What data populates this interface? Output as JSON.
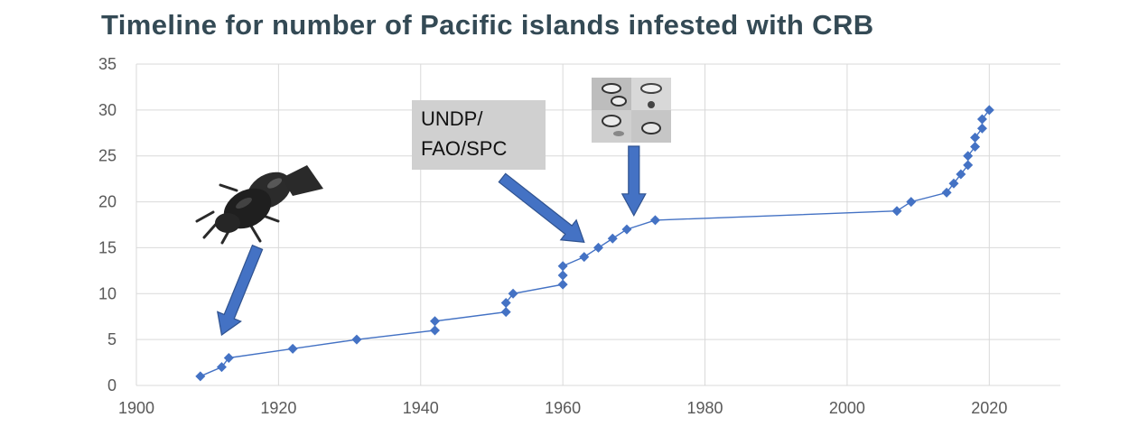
{
  "chart_data": {
    "type": "scatter",
    "title": "Timeline for number of Pacific islands infested with CRB",
    "xlabel": "",
    "ylabel": "",
    "xlim": [
      1900,
      2030
    ],
    "ylim": [
      0,
      35
    ],
    "x_ticks": [
      1900,
      1920,
      1940,
      1960,
      1980,
      2000,
      2020
    ],
    "y_ticks": [
      0,
      5,
      10,
      15,
      20,
      25,
      30,
      35
    ],
    "grid": true,
    "line_connected": true,
    "series": [
      {
        "color": "#4472c4",
        "marker": "diamond",
        "points": [
          [
            1909,
            1
          ],
          [
            1912,
            2
          ],
          [
            1913,
            3
          ],
          [
            1922,
            4
          ],
          [
            1931,
            5
          ],
          [
            1942,
            6
          ],
          [
            1942,
            7
          ],
          [
            1952,
            8
          ],
          [
            1952,
            9
          ],
          [
            1953,
            10
          ],
          [
            1960,
            11
          ],
          [
            1960,
            12
          ],
          [
            1960,
            13
          ],
          [
            1963,
            14
          ],
          [
            1965,
            15
          ],
          [
            1967,
            16
          ],
          [
            1969,
            17
          ],
          [
            1973,
            18
          ],
          [
            2007,
            19
          ],
          [
            2009,
            20
          ],
          [
            2014,
            21
          ],
          [
            2015,
            22
          ],
          [
            2016,
            23
          ],
          [
            2017,
            24
          ],
          [
            2017,
            25
          ],
          [
            2018,
            26
          ],
          [
            2018,
            27
          ],
          [
            2019,
            28
          ],
          [
            2019,
            29
          ],
          [
            2020,
            30
          ]
        ]
      }
    ],
    "annotations": [
      {
        "kind": "text-box",
        "lines": [
          "UNDP/",
          "FAO/SPC"
        ]
      },
      {
        "kind": "image",
        "icon": "beetle-icon",
        "description_arrow_to": [
          1912,
          5
        ]
      },
      {
        "kind": "image",
        "icon": "micrograph-icon",
        "description_arrow_to": [
          1969,
          18.5
        ]
      }
    ]
  },
  "colors": {
    "series": "#4472c4",
    "arrow": "#4472c4",
    "arrow_stroke": "#2f528f",
    "title": "#344a55",
    "grid": "#d9d9d9",
    "tick_text": "#595959",
    "callout_bg": "#d0d0d0"
  }
}
